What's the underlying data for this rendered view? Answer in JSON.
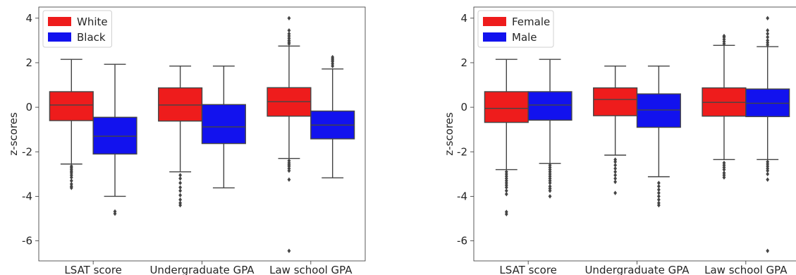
{
  "chart_data": [
    {
      "type": "box",
      "ylabel": "z-scores",
      "ylim": [
        -6.9,
        4.5
      ],
      "yticks": [
        4,
        2,
        0,
        -2,
        -4,
        -6
      ],
      "categories": [
        "LSAT score",
        "Undergraduate GPA",
        "Law school GPA"
      ],
      "legend": {
        "position": "upper-left",
        "entries": [
          {
            "label": "White",
            "color": "#ee1c1c"
          },
          {
            "label": "Black",
            "color": "#1212ee"
          }
        ]
      },
      "series": [
        {
          "name": "White",
          "color": "#ee1c1c",
          "boxes": [
            {
              "whisker_low": -2.55,
              "q1": -0.6,
              "median": 0.1,
              "q3": 0.7,
              "whisker_high": 2.15,
              "outliers": [
                -2.65,
                -2.72,
                -2.8,
                -2.88,
                -2.95,
                -3.05,
                -3.15,
                -3.3,
                -3.45,
                -3.55,
                -3.62
              ]
            },
            {
              "whisker_low": -2.9,
              "q1": -0.62,
              "median": 0.1,
              "q3": 0.87,
              "whisker_high": 1.85,
              "outliers": [
                -3.05,
                -3.2,
                -3.4,
                -3.6,
                -3.75,
                -3.95,
                -4.15,
                -4.3,
                -4.4
              ]
            },
            {
              "whisker_low": -2.3,
              "q1": -0.4,
              "median": 0.25,
              "q3": 0.88,
              "whisker_high": 2.75,
              "outliers": [
                4.0,
                3.45,
                3.3,
                3.2,
                3.1,
                3.0,
                2.92,
                2.85,
                -2.4,
                -2.5,
                -2.58,
                -2.65,
                -2.75,
                -2.85,
                -3.25,
                -6.45
              ]
            }
          ]
        },
        {
          "name": "Black",
          "color": "#1212ee",
          "boxes": [
            {
              "whisker_low": -4.0,
              "q1": -2.1,
              "median": -1.3,
              "q3": -0.45,
              "whisker_high": 1.93,
              "outliers": [
                -4.68,
                -4.78
              ]
            },
            {
              "whisker_low": -3.62,
              "q1": -1.63,
              "median": -0.88,
              "q3": 0.12,
              "whisker_high": 1.85,
              "outliers": []
            },
            {
              "whisker_low": -3.17,
              "q1": -1.42,
              "median": -0.8,
              "q3": -0.17,
              "whisker_high": 1.72,
              "outliers": [
                1.85,
                1.95,
                2.05,
                2.12,
                2.18,
                2.25
              ]
            }
          ]
        }
      ]
    },
    {
      "type": "box",
      "ylabel": "z-scores",
      "ylim": [
        -6.9,
        4.5
      ],
      "yticks": [
        4,
        2,
        0,
        -2,
        -4,
        -6
      ],
      "categories": [
        "LSAT score",
        "Undergraduate GPA",
        "Law school GPA"
      ],
      "legend": {
        "position": "upper-left",
        "entries": [
          {
            "label": "Female",
            "color": "#ee1c1c"
          },
          {
            "label": "Male",
            "color": "#1212ee"
          }
        ]
      },
      "series": [
        {
          "name": "Female",
          "color": "#ee1c1c",
          "boxes": [
            {
              "whisker_low": -2.8,
              "q1": -0.68,
              "median": -0.05,
              "q3": 0.7,
              "whisker_high": 2.15,
              "outliers": [
                -2.9,
                -3.0,
                -3.1,
                -3.2,
                -3.3,
                -3.4,
                -3.5,
                -3.6,
                -3.75,
                -3.9,
                -4.7,
                -4.8
              ]
            },
            {
              "whisker_low": -2.15,
              "q1": -0.38,
              "median": 0.35,
              "q3": 0.87,
              "whisker_high": 1.85,
              "outliers": [
                -2.35,
                -2.45,
                -2.6,
                -2.75,
                -2.9,
                -3.05,
                -3.2,
                -3.35,
                -3.85
              ]
            },
            {
              "whisker_low": -2.35,
              "q1": -0.4,
              "median": 0.22,
              "q3": 0.87,
              "whisker_high": 2.78,
              "outliers": [
                2.85,
                2.95,
                3.05,
                3.15,
                3.2,
                -2.5,
                -2.6,
                -2.7,
                -2.8,
                -2.95,
                -3.05,
                -3.15
              ]
            }
          ]
        },
        {
          "name": "Male",
          "color": "#1212ee",
          "boxes": [
            {
              "whisker_low": -2.52,
              "q1": -0.58,
              "median": 0.1,
              "q3": 0.7,
              "whisker_high": 2.15,
              "outliers": [
                -2.6,
                -2.7,
                -2.8,
                -2.9,
                -3.0,
                -3.1,
                -3.2,
                -3.3,
                -3.4,
                -3.55,
                -3.65,
                -3.75,
                -4.0
              ]
            },
            {
              "whisker_low": -3.12,
              "q1": -0.9,
              "median": -0.12,
              "q3": 0.6,
              "whisker_high": 1.85,
              "outliers": [
                -3.4,
                -3.55,
                -3.7,
                -3.85,
                -4.0,
                -4.15,
                -4.3,
                -4.4
              ]
            },
            {
              "whisker_low": -2.35,
              "q1": -0.42,
              "median": 0.18,
              "q3": 0.82,
              "whisker_high": 2.72,
              "outliers": [
                4.0,
                3.45,
                3.3,
                3.15,
                3.0,
                2.9,
                2.8,
                -2.45,
                -2.55,
                -2.65,
                -2.75,
                -2.85,
                -3.0,
                -3.25,
                -6.45
              ]
            }
          ]
        }
      ]
    }
  ]
}
